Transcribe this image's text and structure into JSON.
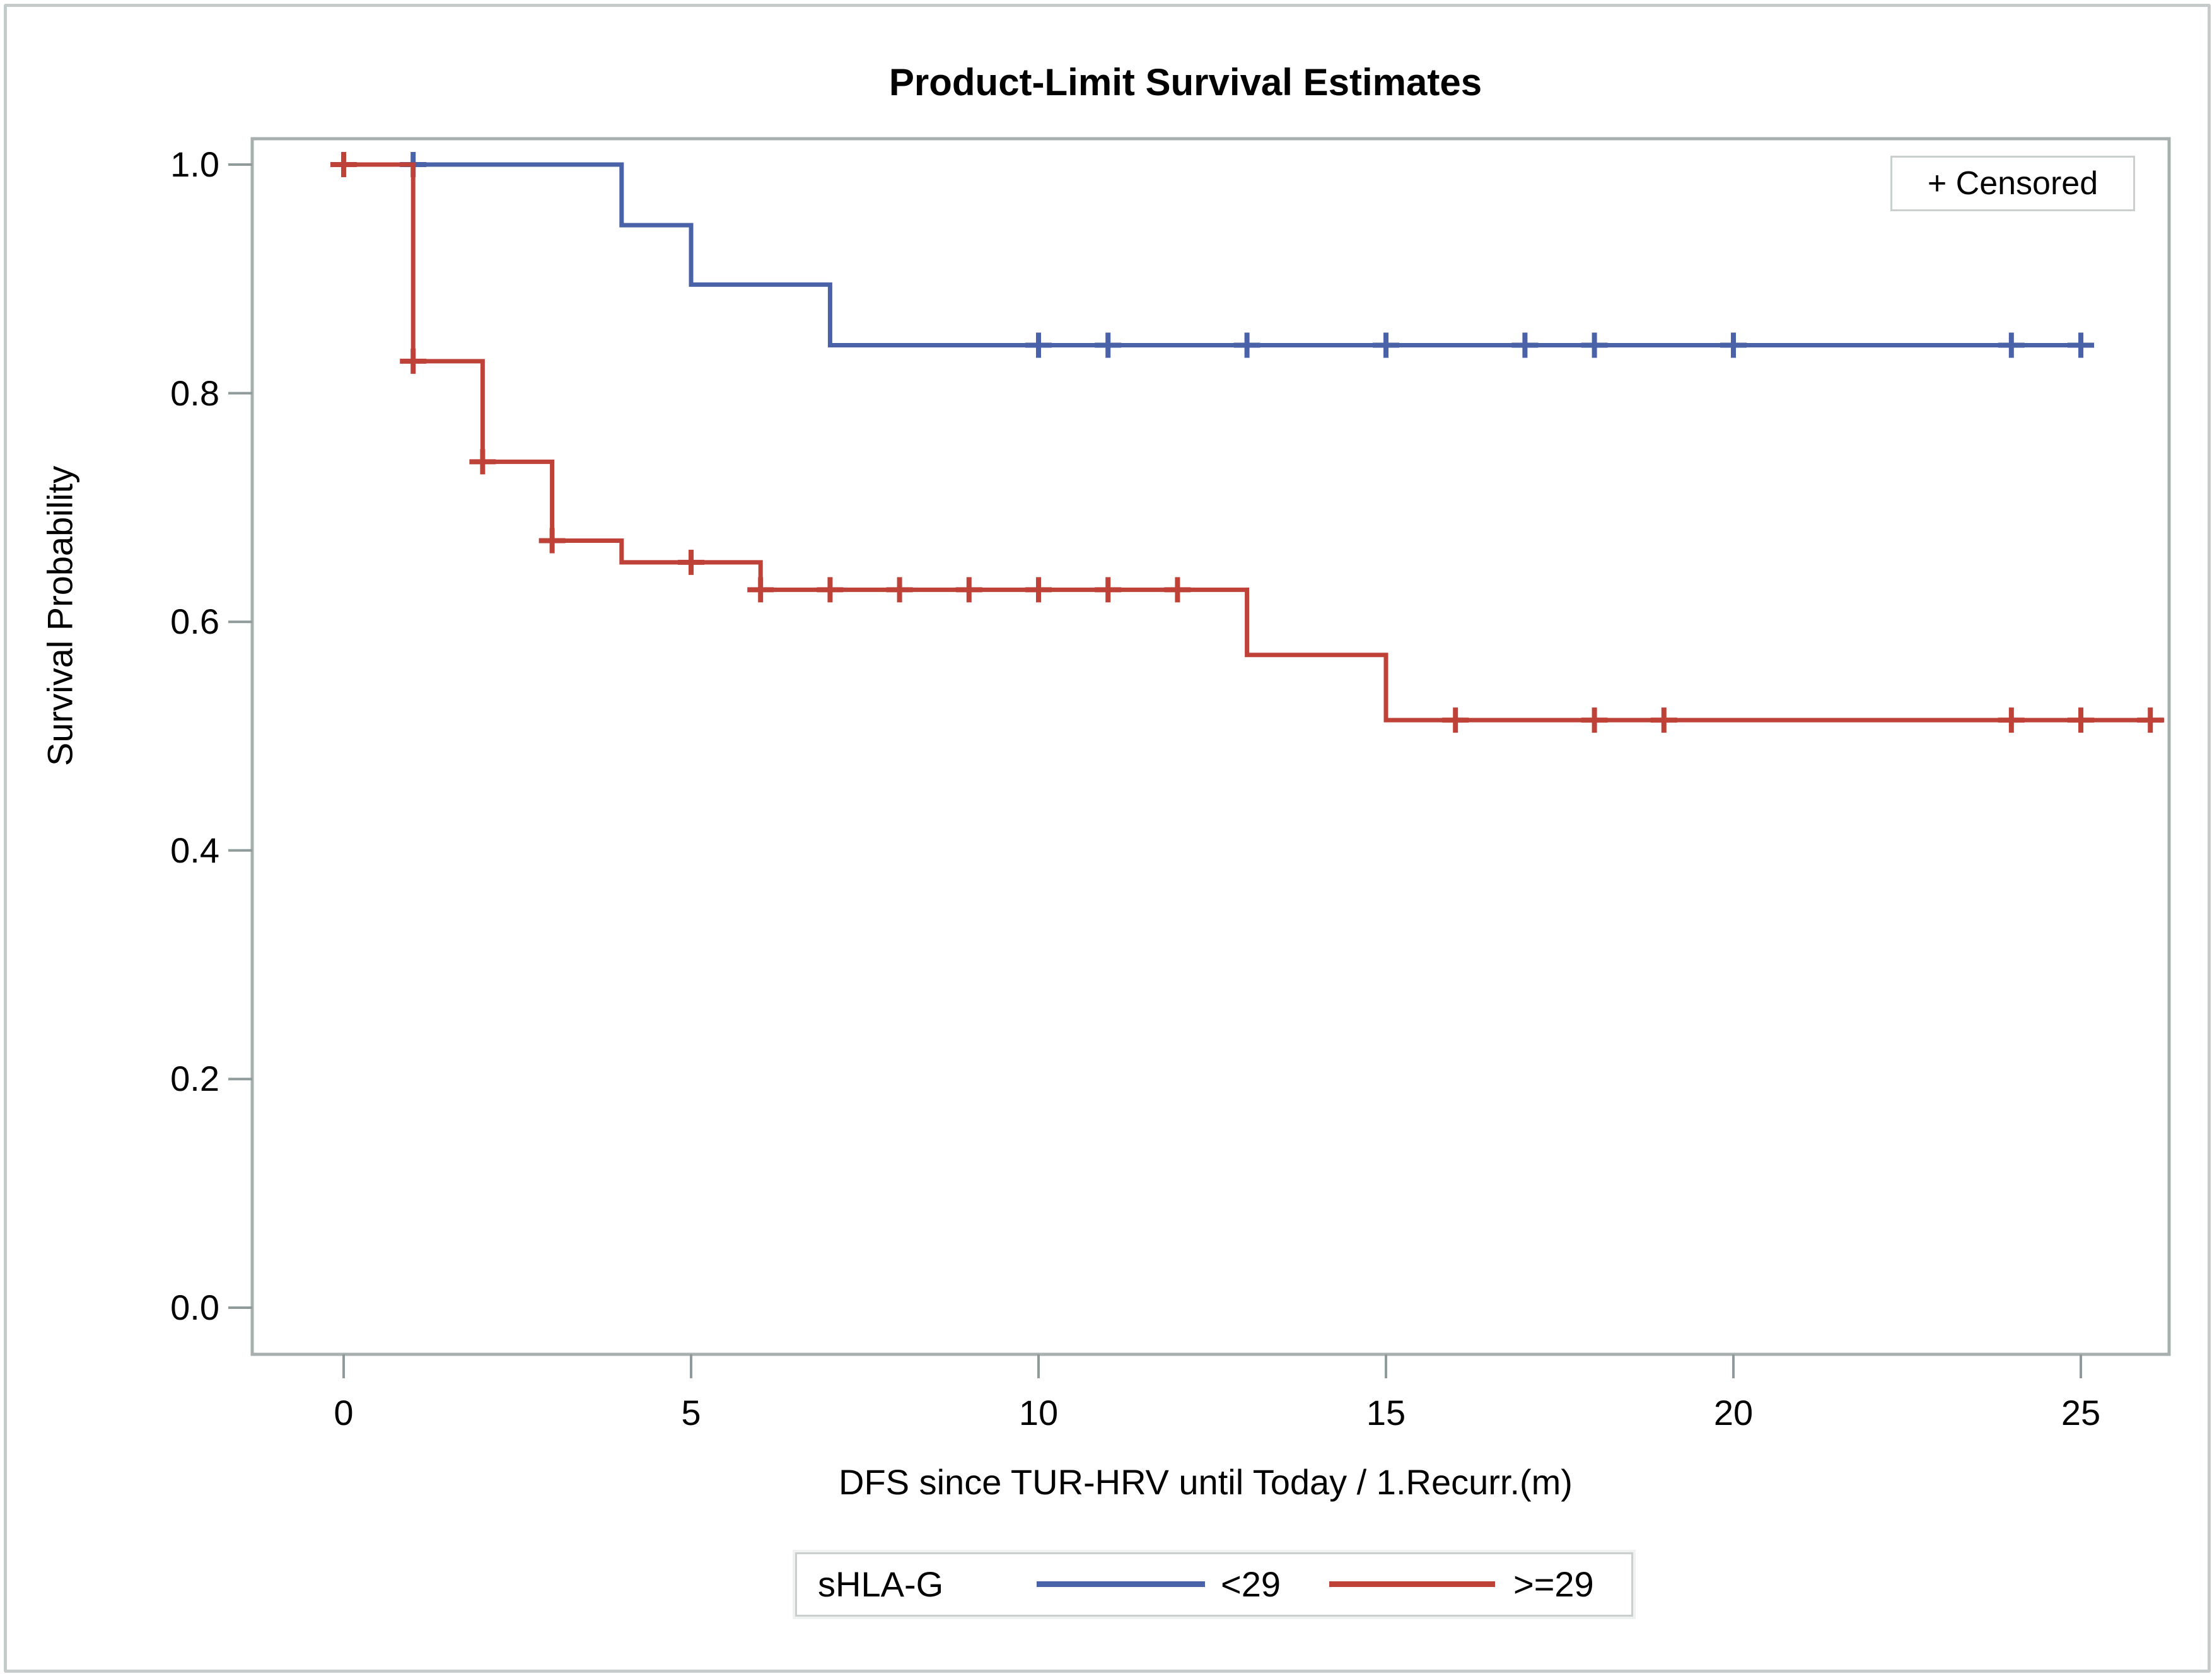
{
  "figure": {
    "title": "Product-Limit Survival Estimates",
    "y_axis": {
      "label": "Survival Probability",
      "ticks": [
        "1.0",
        "0.8",
        "0.6",
        "0.4",
        "0.2",
        "0.0"
      ],
      "tick_values": [
        1.0,
        0.8,
        0.6,
        0.4,
        0.2,
        0.0
      ]
    },
    "x_axis": {
      "label": "DFS since TUR-HRV until Today / 1.Recurr.(m)",
      "ticks": [
        "0",
        "5",
        "10",
        "15",
        "20",
        "25"
      ],
      "tick_values": [
        0,
        5,
        10,
        15,
        20,
        25
      ]
    },
    "censored_legend": {
      "marker": "+",
      "label": "Censored",
      "text": "+ Censored"
    },
    "legend": {
      "group_label": "sHLA-G",
      "entries": [
        {
          "label": "<29",
          "color": "#4a63a8"
        },
        {
          "label": ">=29",
          "color": "#bf4238"
        }
      ]
    }
  },
  "chart_data": {
    "type": "line",
    "variant": "kaplan_meier_step",
    "title": "Product-Limit Survival Estimates",
    "xlabel": "DFS since TUR-HRV until Today / 1.Recurr.(m)",
    "ylabel": "Survival Probability",
    "xlim": [
      0,
      26.3
    ],
    "ylim": [
      0.0,
      1.0
    ],
    "xticks": [
      0,
      5,
      10,
      15,
      20,
      25
    ],
    "yticks": [
      0.0,
      0.2,
      0.4,
      0.6,
      0.8,
      1.0
    ],
    "grid": false,
    "legend_position": "bottom",
    "legend_group_label": "sHLA-G",
    "censored_marker_note": "+ Censored",
    "series": [
      {
        "name": "<29",
        "group": "sHLA-G",
        "color": "#4a63a8",
        "steps": [
          [
            0,
            1.0
          ],
          [
            4,
            0.947
          ],
          [
            5,
            0.895
          ],
          [
            7,
            0.842
          ]
        ],
        "end_x": 25.1,
        "censor_marks": [
          [
            1,
            1.0
          ],
          [
            10,
            0.842
          ],
          [
            11,
            0.842
          ],
          [
            13,
            0.842
          ],
          [
            15,
            0.842
          ],
          [
            17,
            0.842
          ],
          [
            18,
            0.842
          ],
          [
            20,
            0.842
          ],
          [
            24,
            0.842
          ],
          [
            25,
            0.842
          ]
        ]
      },
      {
        "name": ">=29",
        "group": "sHLA-G",
        "color": "#bf4238",
        "steps": [
          [
            0,
            1.0
          ],
          [
            1,
            0.828
          ],
          [
            2,
            0.74
          ],
          [
            3,
            0.671
          ],
          [
            4,
            0.652
          ],
          [
            6,
            0.628
          ],
          [
            13,
            0.571
          ],
          [
            15,
            0.514
          ]
        ],
        "end_x": 26.2,
        "censor_marks": [
          [
            0,
            1.0
          ],
          [
            1,
            0.828
          ],
          [
            2,
            0.74
          ],
          [
            3,
            0.671
          ],
          [
            5,
            0.652
          ],
          [
            6,
            0.628
          ],
          [
            7,
            0.628
          ],
          [
            8,
            0.628
          ],
          [
            9,
            0.628
          ],
          [
            10,
            0.628
          ],
          [
            11,
            0.628
          ],
          [
            12,
            0.628
          ],
          [
            16,
            0.514
          ],
          [
            18,
            0.514
          ],
          [
            19,
            0.514
          ],
          [
            24,
            0.514
          ],
          [
            25,
            0.514
          ],
          [
            26,
            0.514
          ]
        ]
      }
    ]
  }
}
